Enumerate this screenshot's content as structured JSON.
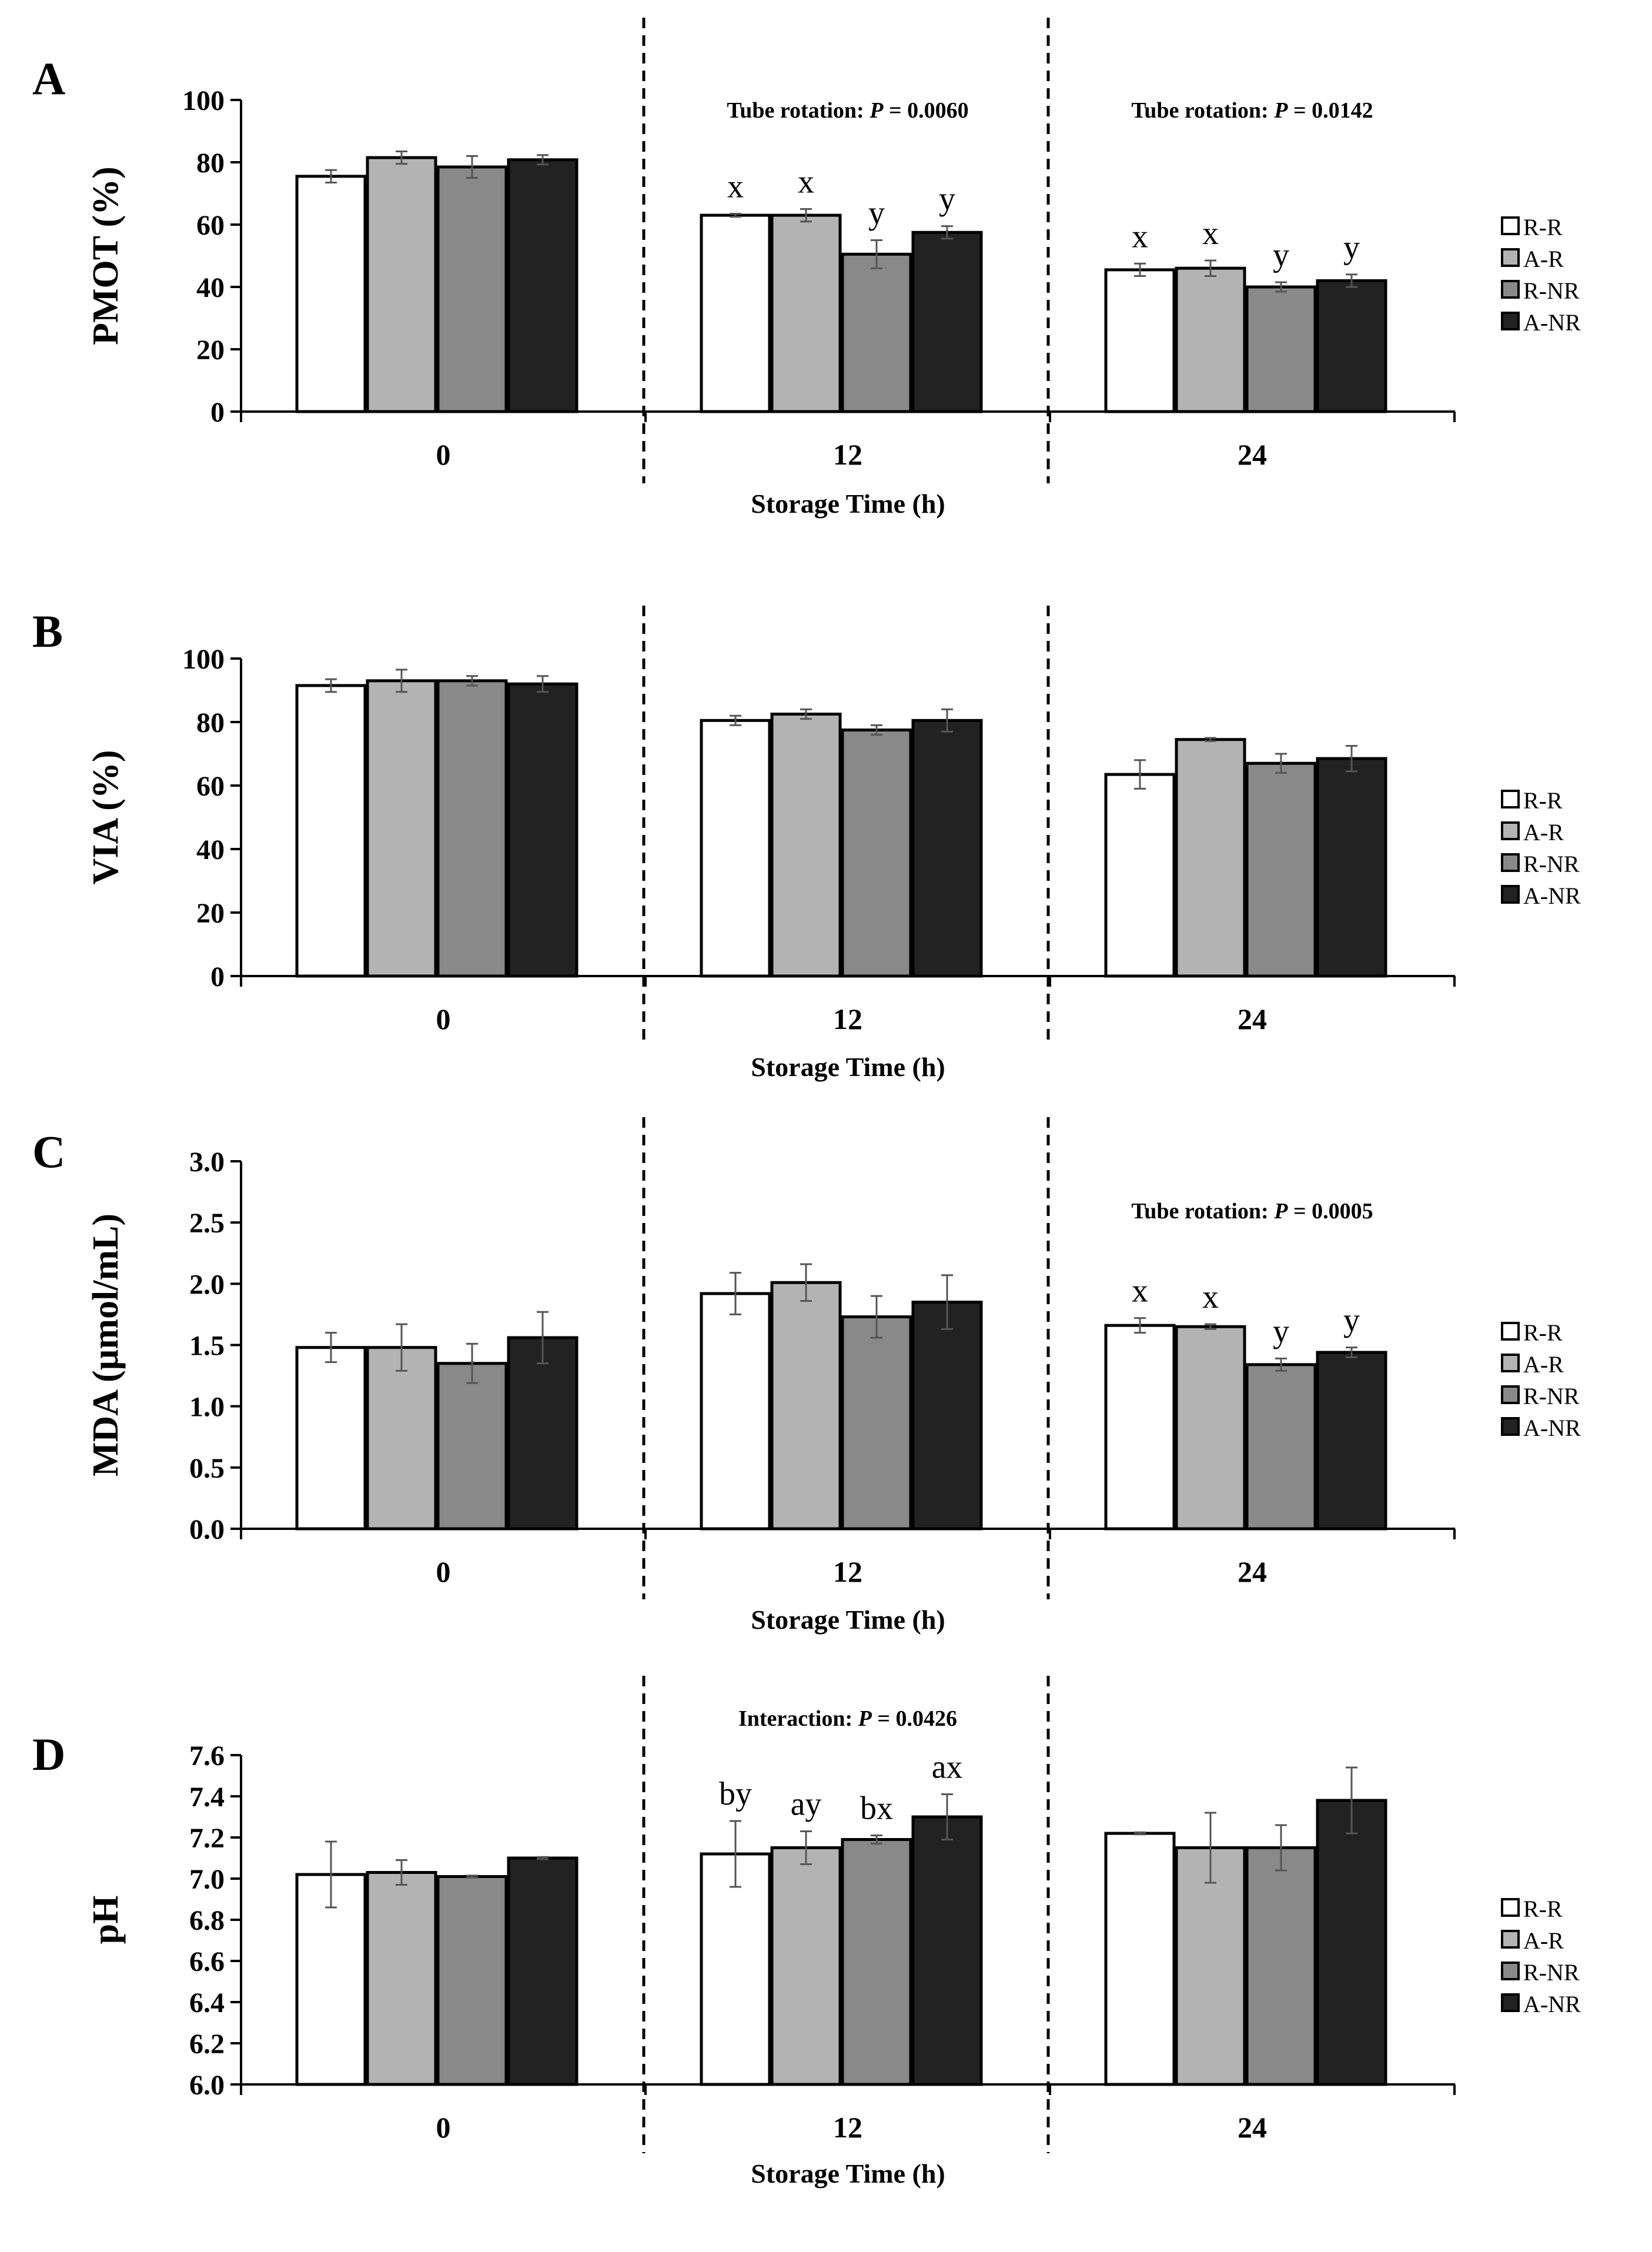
{
  "legend": {
    "entries": [
      {
        "label": "R-R",
        "color": "#ffffff"
      },
      {
        "label": "A-R",
        "color": "#b3b3b3"
      },
      {
        "label": "R-NR",
        "color": "#898989"
      },
      {
        "label": "A-NR",
        "color": "#222222"
      }
    ]
  },
  "chart_data": [
    {
      "panel": "A",
      "type": "bar",
      "ylabel": "PMOT (%)",
      "xlabel": "Storage Time (h)",
      "categories": [
        "0",
        "12",
        "24"
      ],
      "ylim": [
        0,
        100
      ],
      "yticks": [
        "0",
        "20",
        "40",
        "60",
        "80",
        "100"
      ],
      "series": [
        {
          "name": "R-R",
          "values": [
            75.5,
            63,
            45.5
          ],
          "errors": [
            2,
            0.5,
            2
          ]
        },
        {
          "name": "A-R",
          "values": [
            81.5,
            63,
            46
          ],
          "errors": [
            2,
            2,
            2.5
          ]
        },
        {
          "name": "R-NR",
          "values": [
            78.5,
            50.5,
            40
          ],
          "errors": [
            3.5,
            4.5,
            1.5
          ]
        },
        {
          "name": "A-NR",
          "values": [
            80.8,
            57.5,
            42
          ],
          "errors": [
            1.5,
            2,
            2
          ]
        }
      ],
      "letters": [
        [
          "",
          "",
          "",
          ""
        ],
        [
          "x",
          "x",
          "y",
          "y"
        ],
        [
          "x",
          "x",
          "y",
          "y"
        ]
      ],
      "annotations": [
        "",
        "Tube rotation: |P| = 0.0060",
        "Tube rotation: |P| = 0.0142"
      ]
    },
    {
      "panel": "B",
      "type": "bar",
      "ylabel": "VIA (%)",
      "xlabel": "Storage Time (h)",
      "categories": [
        "0",
        "12",
        "24"
      ],
      "ylim": [
        0,
        100
      ],
      "yticks": [
        "0",
        "20",
        "40",
        "60",
        "80",
        "100"
      ],
      "series": [
        {
          "name": "R-R",
          "values": [
            91.5,
            80.5,
            63.5
          ],
          "errors": [
            2,
            1.5,
            4.5
          ]
        },
        {
          "name": "A-R",
          "values": [
            93,
            82.5,
            74.5
          ],
          "errors": [
            3.5,
            1.5,
            0.5
          ]
        },
        {
          "name": "R-NR",
          "values": [
            93,
            77.5,
            67
          ],
          "errors": [
            1.5,
            1.5,
            3
          ]
        },
        {
          "name": "A-NR",
          "values": [
            92,
            80.5,
            68.5
          ],
          "errors": [
            2.5,
            3.5,
            4
          ]
        }
      ],
      "letters": [
        [
          "",
          "",
          "",
          ""
        ],
        [
          "",
          "",
          "",
          ""
        ],
        [
          "",
          "",
          "",
          ""
        ]
      ],
      "annotations": [
        "",
        "",
        ""
      ]
    },
    {
      "panel": "C",
      "type": "bar",
      "ylabel": "MDA (µmol/mL)",
      "xlabel": "Storage Time (h)",
      "categories": [
        "0",
        "12",
        "24"
      ],
      "ylim": [
        0,
        3
      ],
      "yticks": [
        "0.0",
        "0.5",
        "1.0",
        "1.5",
        "2.0",
        "2.5",
        "3.0"
      ],
      "series": [
        {
          "name": "R-R",
          "values": [
            1.48,
            1.92,
            1.66
          ],
          "errors": [
            0.12,
            0.17,
            0.06
          ]
        },
        {
          "name": "A-R",
          "values": [
            1.48,
            2.01,
            1.65
          ],
          "errors": [
            0.19,
            0.15,
            0.02
          ]
        },
        {
          "name": "R-NR",
          "values": [
            1.35,
            1.73,
            1.34
          ],
          "errors": [
            0.16,
            0.17,
            0.05
          ]
        },
        {
          "name": "A-NR",
          "values": [
            1.56,
            1.85,
            1.44
          ],
          "errors": [
            0.21,
            0.22,
            0.04
          ]
        }
      ],
      "letters": [
        [
          "",
          "",
          "",
          ""
        ],
        [
          "",
          "",
          "",
          ""
        ],
        [
          "x",
          "x",
          "y",
          "y"
        ]
      ],
      "annotations": [
        "",
        "",
        "Tube rotation: |P| = 0.0005"
      ]
    },
    {
      "panel": "D",
      "type": "bar",
      "ylabel": "pH",
      "xlabel": "Storage Time (h)",
      "categories": [
        "0",
        "12",
        "24"
      ],
      "ylim": [
        6,
        7.6
      ],
      "yticks": [
        "6.0",
        "6.2",
        "6.4",
        "6.6",
        "6.8",
        "7.0",
        "7.2",
        "7.4",
        "7.6"
      ],
      "series": [
        {
          "name": "R-R",
          "values": [
            7.02,
            7.12,
            7.22
          ],
          "errors": [
            0.16,
            0.16,
            0.005
          ]
        },
        {
          "name": "A-R",
          "values": [
            7.03,
            7.15,
            7.15
          ],
          "errors": [
            0.06,
            0.08,
            0.17
          ]
        },
        {
          "name": "R-NR",
          "values": [
            7.01,
            7.19,
            7.15
          ],
          "errors": [
            0.005,
            0.02,
            0.11
          ]
        },
        {
          "name": "A-NR",
          "values": [
            7.1,
            7.3,
            7.38
          ],
          "errors": [
            0.005,
            0.11,
            0.16
          ]
        }
      ],
      "letters": [
        [
          "",
          "",
          "",
          ""
        ],
        [
          "by",
          "ay",
          "bx",
          "ax"
        ],
        [
          "",
          "",
          "",
          ""
        ]
      ],
      "annotations": [
        "",
        "Interaction: |P| = 0.0426",
        ""
      ]
    }
  ]
}
